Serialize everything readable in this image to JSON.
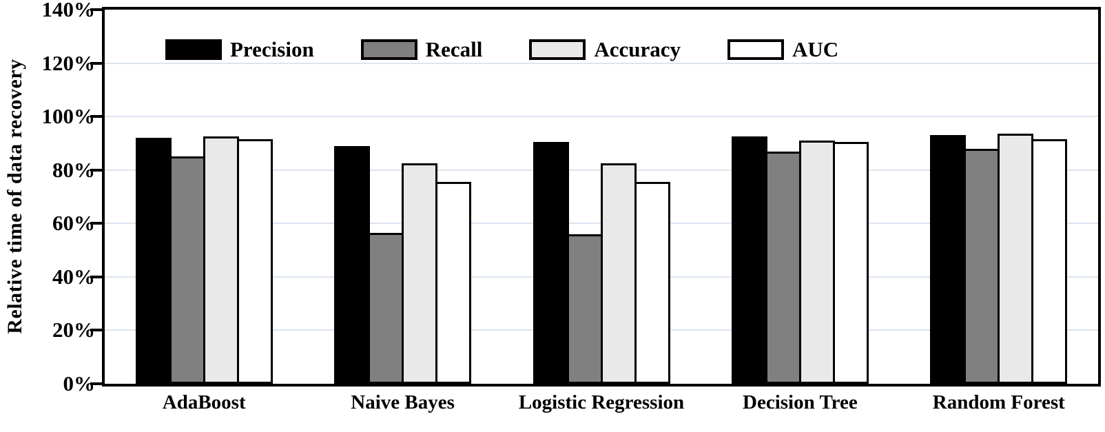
{
  "chart_data": {
    "type": "bar",
    "title": "",
    "xlabel": "",
    "ylabel": "Relative time of data recovery",
    "categories": [
      "AdaBoost",
      "Naive Bayes",
      "Logistic Regression",
      "Decision Tree",
      "Random Forest"
    ],
    "series": [
      {
        "name": "Precision",
        "color": "#000000",
        "values": [
          92,
          89,
          90.5,
          92.5,
          93
        ]
      },
      {
        "name": "Recall",
        "color": "#808080",
        "values": [
          85,
          56.5,
          56,
          87,
          88
        ]
      },
      {
        "name": "Accuracy",
        "color": "#e9e9e9",
        "values": [
          92.5,
          82.5,
          82.5,
          91,
          93.5
        ]
      },
      {
        "name": "AUC",
        "color": "#ffffff",
        "values": [
          91.5,
          75.5,
          75.5,
          90.5,
          91.5
        ]
      }
    ],
    "ylim": [
      0,
      140
    ],
    "ytick_step": 20,
    "ytick_labels": [
      "0%",
      "20%",
      "40%",
      "60%",
      "80%",
      "100%",
      "120%",
      "140%"
    ],
    "grid": true,
    "legend_position": "top-inside"
  },
  "colors": {
    "gridline": "#dce4ef",
    "axis": "#000000",
    "bar_border": "#000000",
    "background": "#ffffff"
  }
}
